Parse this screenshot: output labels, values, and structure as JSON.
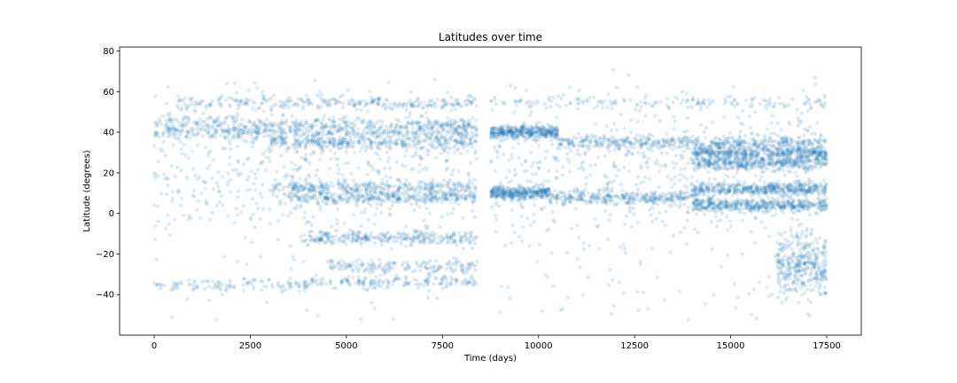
{
  "chart_data": {
    "type": "scatter",
    "title": "Latitudes over time",
    "xlabel": "Time (days)",
    "ylabel": "Latitude (degrees)",
    "xlim": [
      -900,
      18400
    ],
    "ylim": [
      -60,
      82
    ],
    "xticks": [
      0,
      2500,
      5000,
      7500,
      10000,
      12500,
      15000,
      17500
    ],
    "yticks": [
      -40,
      -20,
      0,
      20,
      40,
      60,
      80
    ],
    "grid": false,
    "legend": "none",
    "series": [
      {
        "color": "#1f77b4",
        "alpha": 0.15,
        "x_range": [
          0,
          17500
        ],
        "data_gap": [
          8400,
          8750
        ],
        "dense_bands": [
          {
            "lat": 54.5,
            "x": [
              600,
              8400
            ],
            "weight": 5
          },
          {
            "lat": 54.5,
            "x": [
              8750,
              17500
            ],
            "weight": 3
          },
          {
            "lat": 44,
            "x": [
              0,
              8400
            ],
            "weight": 6
          },
          {
            "lat": 40,
            "x": [
              0,
              8400
            ],
            "weight": 7
          },
          {
            "lat": 35,
            "x": [
              3000,
              8400
            ],
            "weight": 6
          },
          {
            "lat": 40,
            "x": [
              8750,
              10500
            ],
            "weight": 7
          },
          {
            "lat": 35,
            "x": [
              10500,
              17500
            ],
            "weight": 8
          },
          {
            "lat": 30,
            "x": [
              14000,
              17500
            ],
            "weight": 8
          },
          {
            "lat": 25,
            "x": [
              14000,
              17500
            ],
            "weight": 7
          },
          {
            "lat": 13,
            "x": [
              3000,
              8400
            ],
            "weight": 5
          },
          {
            "lat": 8,
            "x": [
              3500,
              8400
            ],
            "weight": 6
          },
          {
            "lat": 10,
            "x": [
              8750,
              10300
            ],
            "weight": 6
          },
          {
            "lat": 8,
            "x": [
              10300,
              14000
            ],
            "weight": 5
          },
          {
            "lat": 12,
            "x": [
              14000,
              17500
            ],
            "weight": 8
          },
          {
            "lat": 4,
            "x": [
              14000,
              17500
            ],
            "weight": 8
          },
          {
            "lat": -12,
            "x": [
              3900,
              8400
            ],
            "weight": 5
          },
          {
            "lat": -26,
            "x": [
              4500,
              8400
            ],
            "weight": 3
          },
          {
            "lat": -34,
            "x": [
              4000,
              8400
            ],
            "weight": 3
          },
          {
            "lat": -35,
            "x": [
              0,
              4000
            ],
            "weight": 2
          }
        ],
        "scatter_spread": {
          "lat": [
            -53,
            65
          ],
          "x": [
            0,
            17500
          ]
        }
      }
    ]
  }
}
